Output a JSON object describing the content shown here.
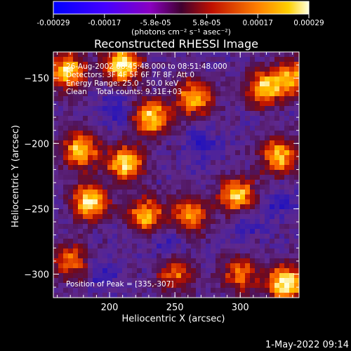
{
  "chart_data": {
    "type": "heatmap",
    "title": "Reconstructed RHESSI Image",
    "xlabel": "Heliocentric X (arcsec)",
    "ylabel": "Heliocentric Y (arcsec)",
    "xlim": [
      157,
      345
    ],
    "ylim": [
      -318,
      -130
    ],
    "x_ticks": [
      200,
      250,
      300
    ],
    "y_ticks": [
      -150,
      -200,
      -250,
      -300
    ],
    "colorbar": {
      "label": "(photons cm⁻² s⁻¹ asec⁻²)",
      "ticks": [
        "-0.00029",
        "-0.00017",
        "-5.8e-05",
        "5.8e-05",
        "0.00017",
        "0.00029"
      ],
      "range": [
        -0.00029,
        0.00029
      ]
    },
    "annotations": [
      "26-Aug-2002 08:45:48.000 to 08:51:48.000",
      "Detectors: 3F 4F 5F 6F 7F 8F, Att 0",
      "Energy Range: 25.0 - 50.0 keV",
      "Clean    Total counts: 9.31E+03"
    ],
    "peak_label": "Position of Peak = [335,-307]",
    "bright_sources": [
      {
        "x": 168,
        "y": -145,
        "w": 0.85
      },
      {
        "x": 210,
        "y": -140,
        "w": 0.9
      },
      {
        "x": 232,
        "y": -180,
        "w": 0.85
      },
      {
        "x": 265,
        "y": -165,
        "w": 0.75
      },
      {
        "x": 318,
        "y": -158,
        "w": 0.8
      },
      {
        "x": 340,
        "y": -150,
        "w": 0.7
      },
      {
        "x": 178,
        "y": -205,
        "w": 0.8
      },
      {
        "x": 212,
        "y": -215,
        "w": 0.85
      },
      {
        "x": 185,
        "y": -245,
        "w": 0.9
      },
      {
        "x": 228,
        "y": -255,
        "w": 0.75
      },
      {
        "x": 262,
        "y": -255,
        "w": 0.7
      },
      {
        "x": 298,
        "y": -240,
        "w": 0.8
      },
      {
        "x": 330,
        "y": -210,
        "w": 0.8
      },
      {
        "x": 170,
        "y": -290,
        "w": 0.6
      },
      {
        "x": 250,
        "y": -300,
        "w": 0.55
      },
      {
        "x": 300,
        "y": -300,
        "w": 0.6
      },
      {
        "x": 335,
        "y": -307,
        "w": 1.0
      }
    ],
    "dim_regions": [
      {
        "x": 205,
        "y": -175,
        "w": 0.6
      },
      {
        "x": 270,
        "y": -200,
        "w": 0.5
      },
      {
        "x": 245,
        "y": -275,
        "w": 0.55
      },
      {
        "x": 305,
        "y": -260,
        "w": 0.45
      },
      {
        "x": 330,
        "y": -245,
        "w": 0.5
      },
      {
        "x": 195,
        "y": -300,
        "w": 0.4
      }
    ]
  },
  "footer": {
    "date": "1-May-2022 09:14"
  }
}
